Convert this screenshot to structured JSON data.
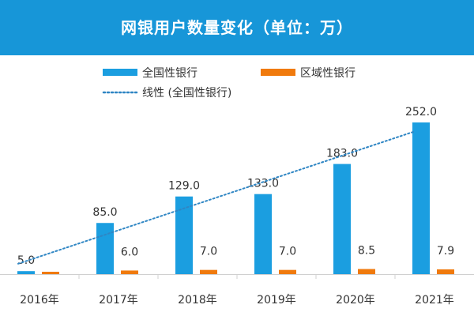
{
  "chart_data": {
    "type": "bar",
    "title": "网银用户数量变化（单位：万）",
    "categories": [
      "2016年",
      "2017年",
      "2018年",
      "2019年",
      "2020年",
      "2021年"
    ],
    "series": [
      {
        "name": "全国性银行",
        "values": [
          5.0,
          85.0,
          129.0,
          133.0,
          183.0,
          252.0
        ],
        "labels": [
          "5.0",
          "85.0",
          "129.0",
          "133.0",
          "183.0",
          "252.0"
        ],
        "color": "#1b9ee0"
      },
      {
        "name": "区域性银行",
        "values": [
          0.0,
          6.0,
          7.0,
          7.0,
          8.5,
          7.9
        ],
        "labels": [
          "",
          "6.0",
          "7.0",
          "7.0",
          "8.5",
          "7.9"
        ],
        "color": "#f07a0d"
      }
    ],
    "trendline": {
      "name": "线性 (全国性银行)",
      "series": "全国性银行",
      "style": "dotted",
      "color": "#2f86c4"
    },
    "ylim": [
      0,
      252
    ],
    "legend_position": "top-left",
    "grid": false
  }
}
